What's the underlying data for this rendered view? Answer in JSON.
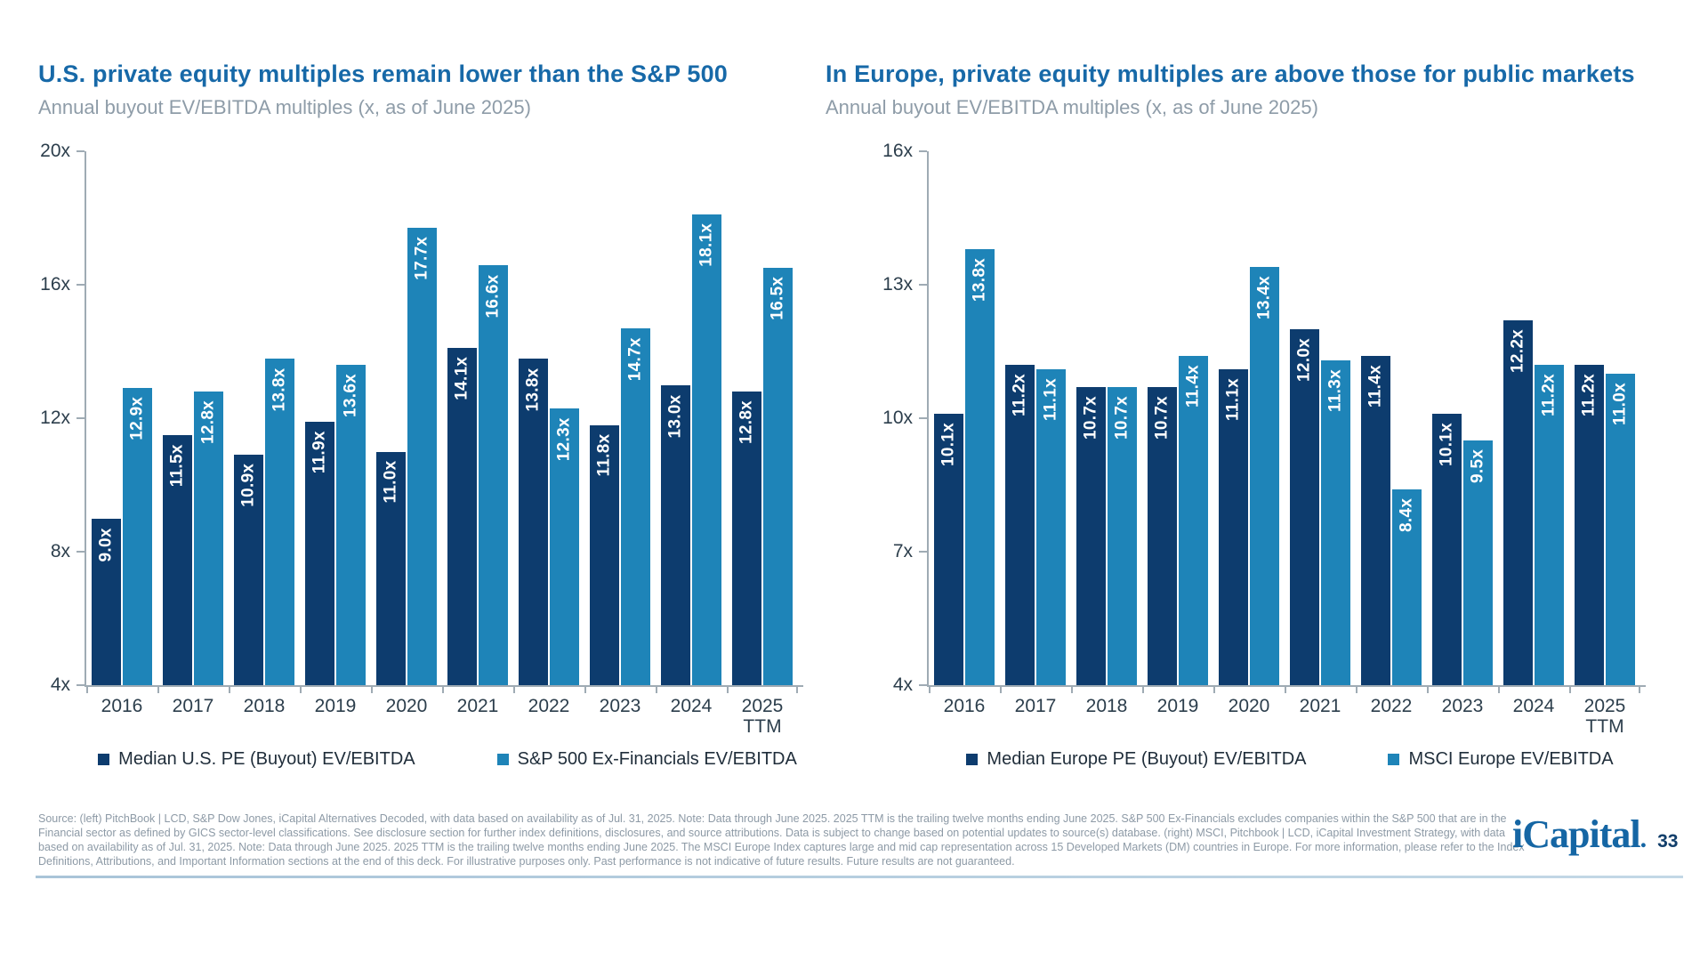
{
  "slide": {
    "charts": [
      {
        "title": "U.S. private equity multiples remain lower than the S&P 500",
        "subtitle": "Annual buyout EV/EBITDA multiples (x, as of June 2025)"
      },
      {
        "title": "In Europe, private equity multiples are above those for public markets",
        "subtitle": "Annual buyout EV/EBITDA multiples (x, as of June 2025)"
      }
    ],
    "footer": {
      "source_lines": [
        "Source: (left) PitchBook | LCD, S&P Dow Jones, iCapital Alternatives Decoded, with data based on availability as of Jul. 31, 2025. Note: Data through June 2025. 2025 TTM is the trailing twelve months ending June 2025. S&P 500 Ex-Financials excludes companies within the S&P 500 that are in the",
        "Financial sector as defined by GICS sector-level classifications. See disclosure section for further index definitions, disclosures, and source attributions. Data is subject to change based on potential updates to source(s) database. (right) MSCI, Pitchbook | LCD, iCapital Investment Strategy, with data",
        "based on availability as of Jul. 31, 2025. Note: Data through June 2025. 2025 TTM is the trailing twelve months ending June 2025. The MSCI Europe Index captures large and mid cap representation across 15 Developed Markets (DM) countries in Europe. For more information, please refer to the Index",
        "Definitions, Attributions, and Important Information sections at the end of this deck. For illustrative purposes only. Past performance is not indicative of future results. Future results are not guaranteed."
      ],
      "logo_text": "iCapital",
      "logo_dot": ".",
      "page_number": "33"
    },
    "colors": {
      "title_blue": "#1769A8",
      "subtitle_gray": "#8E9CA8",
      "dark_bar": "#0D3C6E",
      "light_bar": "#1E84B8",
      "axis_gray": "#9FABB4",
      "source_gray": "#8D9AA6",
      "logo_blue": "#1566A4"
    }
  },
  "chart_data": [
    {
      "type": "bar",
      "title": "U.S. private equity multiples remain lower than the S&P 500",
      "subtitle": "Annual buyout EV/EBITDA multiples (x, as of June 2025)",
      "categories": [
        "2016",
        "2017",
        "2018",
        "2019",
        "2020",
        "2021",
        "2022",
        "2023",
        "2024",
        "2025 TTM"
      ],
      "series": [
        {
          "name": "Median U.S. PE (Buyout) EV/EBITDA",
          "color": "#0D3C6E",
          "values": [
            9.0,
            11.5,
            10.9,
            11.9,
            11.0,
            14.1,
            13.8,
            11.8,
            13.0,
            12.8
          ]
        },
        {
          "name": "S&P 500 Ex-Financials EV/EBITDA",
          "color": "#1E84B8",
          "values": [
            12.9,
            12.8,
            13.8,
            13.6,
            17.7,
            16.6,
            12.3,
            14.7,
            18.1,
            16.5
          ]
        }
      ],
      "ylim": [
        4,
        20
      ],
      "yticks": [
        20,
        16,
        12,
        8,
        4
      ],
      "tick_suffix": "x",
      "value_suffix": "x",
      "grid": false,
      "legend_position": "bottom"
    },
    {
      "type": "bar",
      "title": "In Europe, private equity multiples are above those for public markets",
      "subtitle": "Annual buyout EV/EBITDA multiples (x, as of June 2025)",
      "categories": [
        "2016",
        "2017",
        "2018",
        "2019",
        "2020",
        "2021",
        "2022",
        "2023",
        "2024",
        "2025 TTM"
      ],
      "series": [
        {
          "name": "Median Europe PE (Buyout) EV/EBITDA",
          "color": "#0D3C6E",
          "values": [
            10.1,
            11.2,
            10.7,
            10.7,
            11.1,
            12.0,
            11.4,
            10.1,
            12.2,
            11.2
          ]
        },
        {
          "name": "MSCI Europe EV/EBITDA",
          "color": "#1E84B8",
          "values": [
            13.8,
            11.1,
            10.7,
            11.4,
            13.4,
            11.3,
            8.4,
            9.5,
            11.2,
            11.0
          ]
        }
      ],
      "ylim": [
        4,
        16
      ],
      "yticks": [
        16,
        13,
        10,
        7,
        4
      ],
      "tick_suffix": "x",
      "value_suffix": "x",
      "grid": false,
      "legend_position": "bottom"
    }
  ]
}
